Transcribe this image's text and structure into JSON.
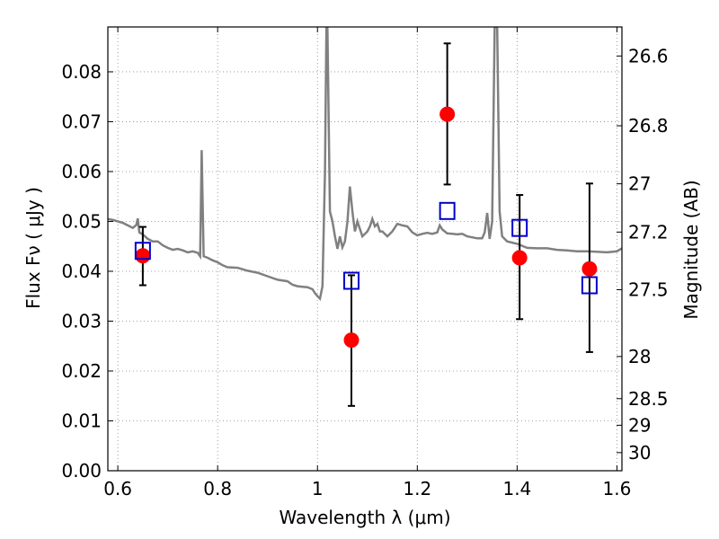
{
  "chart_data": {
    "type": "scatter",
    "xlabel": "Wavelength  λ (μm)",
    "ylabel": "Flux  Fν  ( μJy )",
    "ylabel_right": "Magnitude (AB)",
    "xlim": [
      0.58,
      1.61
    ],
    "ylim": [
      0.0,
      0.089
    ],
    "grid": true,
    "x_ticks": [
      {
        "value": 0.6,
        "label": "0.6"
      },
      {
        "value": 0.8,
        "label": "0.8"
      },
      {
        "value": 1.0,
        "label": "1"
      },
      {
        "value": 1.2,
        "label": "1.2"
      },
      {
        "value": 1.4,
        "label": "1.4"
      },
      {
        "value": 1.6,
        "label": "1.6"
      }
    ],
    "y_ticks": [
      {
        "value": 0.0,
        "label": "0.00"
      },
      {
        "value": 0.01,
        "label": "0.01"
      },
      {
        "value": 0.02,
        "label": "0.02"
      },
      {
        "value": 0.03,
        "label": "0.03"
      },
      {
        "value": 0.04,
        "label": "0.04"
      },
      {
        "value": 0.05,
        "label": "0.05"
      },
      {
        "value": 0.06,
        "label": "0.06"
      },
      {
        "value": 0.07,
        "label": "0.07"
      },
      {
        "value": 0.08,
        "label": "0.08"
      }
    ],
    "mag_ticks": [
      {
        "value": 26.6,
        "label": "26.6"
      },
      {
        "value": 26.8,
        "label": "26.8"
      },
      {
        "value": 27.0,
        "label": "27"
      },
      {
        "value": 27.2,
        "label": "27.2"
      },
      {
        "value": 27.5,
        "label": "27.5"
      },
      {
        "value": 28.0,
        "label": "28"
      },
      {
        "value": 28.5,
        "label": "28.5"
      },
      {
        "value": 29.0,
        "label": "29"
      },
      {
        "value": 30.0,
        "label": "30"
      }
    ],
    "colors": {
      "model": "#808080",
      "observed": "#ff0000",
      "synthetic": "#0000cc",
      "errorbar": "#000000",
      "grid": "#888888"
    },
    "series": [
      {
        "type": "line",
        "points": [
          [
            0.58,
            0.0505
          ],
          [
            0.59,
            0.0503
          ],
          [
            0.6,
            0.05
          ],
          [
            0.61,
            0.0497
          ],
          [
            0.62,
            0.0492
          ],
          [
            0.63,
            0.0487
          ],
          [
            0.637,
            0.0493
          ],
          [
            0.64,
            0.0506
          ],
          [
            0.643,
            0.0478
          ],
          [
            0.65,
            0.0474
          ],
          [
            0.66,
            0.0465
          ],
          [
            0.67,
            0.046
          ],
          [
            0.68,
            0.046
          ],
          [
            0.69,
            0.0452
          ],
          [
            0.7,
            0.0447
          ],
          [
            0.71,
            0.0443
          ],
          [
            0.72,
            0.0445
          ],
          [
            0.73,
            0.0442
          ],
          [
            0.74,
            0.0438
          ],
          [
            0.75,
            0.044
          ],
          [
            0.76,
            0.0437
          ],
          [
            0.765,
            0.043
          ],
          [
            0.768,
            0.0643
          ],
          [
            0.772,
            0.043
          ],
          [
            0.78,
            0.0427
          ],
          [
            0.79,
            0.0422
          ],
          [
            0.8,
            0.0418
          ],
          [
            0.81,
            0.0412
          ],
          [
            0.82,
            0.0408
          ],
          [
            0.84,
            0.0407
          ],
          [
            0.86,
            0.0401
          ],
          [
            0.88,
            0.0397
          ],
          [
            0.9,
            0.039
          ],
          [
            0.92,
            0.0383
          ],
          [
            0.94,
            0.038
          ],
          [
            0.95,
            0.0373
          ],
          [
            0.96,
            0.037
          ],
          [
            0.97,
            0.0369
          ],
          [
            0.98,
            0.0368
          ],
          [
            0.99,
            0.0364
          ],
          [
            0.995,
            0.0356
          ],
          [
            1.0,
            0.035
          ],
          [
            1.005,
            0.0345
          ],
          [
            1.01,
            0.037
          ],
          [
            1.015,
            0.06
          ],
          [
            1.018,
            0.089
          ],
          [
            1.02,
            0.089
          ],
          [
            1.025,
            0.052
          ],
          [
            1.03,
            0.05
          ],
          [
            1.035,
            0.047
          ],
          [
            1.04,
            0.0445
          ],
          [
            1.045,
            0.047
          ],
          [
            1.05,
            0.0448
          ],
          [
            1.055,
            0.046
          ],
          [
            1.06,
            0.05
          ],
          [
            1.065,
            0.057
          ],
          [
            1.07,
            0.052
          ],
          [
            1.075,
            0.048
          ],
          [
            1.08,
            0.05
          ],
          [
            1.09,
            0.047
          ],
          [
            1.1,
            0.048
          ],
          [
            1.105,
            0.049
          ],
          [
            1.11,
            0.0505
          ],
          [
            1.115,
            0.049
          ],
          [
            1.12,
            0.0495
          ],
          [
            1.125,
            0.048
          ],
          [
            1.13,
            0.048
          ],
          [
            1.14,
            0.047
          ],
          [
            1.15,
            0.048
          ],
          [
            1.16,
            0.0495
          ],
          [
            1.17,
            0.0492
          ],
          [
            1.18,
            0.049
          ],
          [
            1.19,
            0.0478
          ],
          [
            1.2,
            0.0472
          ],
          [
            1.21,
            0.0475
          ],
          [
            1.22,
            0.0477
          ],
          [
            1.23,
            0.0475
          ],
          [
            1.24,
            0.0478
          ],
          [
            1.245,
            0.0492
          ],
          [
            1.25,
            0.0484
          ],
          [
            1.26,
            0.0476
          ],
          [
            1.27,
            0.0475
          ],
          [
            1.28,
            0.0474
          ],
          [
            1.29,
            0.0475
          ],
          [
            1.3,
            0.047
          ],
          [
            1.31,
            0.0468
          ],
          [
            1.32,
            0.0466
          ],
          [
            1.33,
            0.0466
          ],
          [
            1.335,
            0.0478
          ],
          [
            1.34,
            0.0517
          ],
          [
            1.345,
            0.0465
          ],
          [
            1.35,
            0.05
          ],
          [
            1.355,
            0.089
          ],
          [
            1.36,
            0.089
          ],
          [
            1.365,
            0.052
          ],
          [
            1.37,
            0.047
          ],
          [
            1.38,
            0.046
          ],
          [
            1.4,
            0.0455
          ],
          [
            1.42,
            0.0447
          ],
          [
            1.44,
            0.0446
          ],
          [
            1.46,
            0.0446
          ],
          [
            1.48,
            0.0443
          ],
          [
            1.5,
            0.0442
          ],
          [
            1.52,
            0.044
          ],
          [
            1.54,
            0.044
          ],
          [
            1.56,
            0.0439
          ],
          [
            1.58,
            0.0438
          ],
          [
            1.6,
            0.044
          ],
          [
            1.61,
            0.0446
          ]
        ]
      },
      {
        "type": "errorbar",
        "points": [
          {
            "x": 0.65,
            "y": 0.0431,
            "ylo": 0.0372,
            "yhi": 0.0489
          },
          {
            "x": 1.068,
            "y": 0.0262,
            "ylo": 0.013,
            "yhi": 0.0392
          },
          {
            "x": 1.26,
            "y": 0.0715,
            "ylo": 0.0574,
            "yhi": 0.0857
          },
          {
            "x": 1.405,
            "y": 0.0427,
            "ylo": 0.0304,
            "yhi": 0.0553
          },
          {
            "x": 1.545,
            "y": 0.0405,
            "ylo": 0.0238,
            "yhi": 0.0576
          }
        ]
      },
      {
        "type": "scatter",
        "marker": "square",
        "points": [
          {
            "x": 0.65,
            "y": 0.0441
          },
          {
            "x": 1.068,
            "y": 0.0381
          },
          {
            "x": 1.26,
            "y": 0.0521
          },
          {
            "x": 1.405,
            "y": 0.0487
          },
          {
            "x": 1.545,
            "y": 0.0372
          }
        ]
      }
    ]
  }
}
